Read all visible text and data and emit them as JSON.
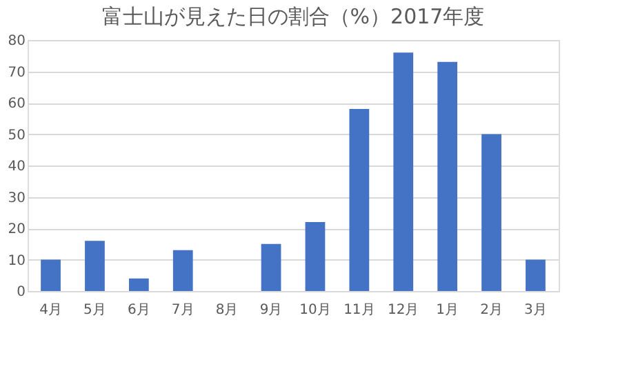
{
  "chart_data": {
    "type": "bar",
    "title": "富士山が見えた日の割合（%）2017年度",
    "categories": [
      "4月",
      "5月",
      "6月",
      "7月",
      "8月",
      "9月",
      "10月",
      "11月",
      "12月",
      "1月",
      "2月",
      "3月"
    ],
    "values": [
      10,
      16,
      4,
      13,
      0,
      15,
      22,
      58,
      76,
      73,
      50,
      10
    ],
    "color": "#4472c4",
    "ylim": [
      0,
      80
    ],
    "yticks": [
      0,
      10,
      20,
      30,
      40,
      50,
      60,
      70,
      80
    ],
    "grid": "y"
  }
}
